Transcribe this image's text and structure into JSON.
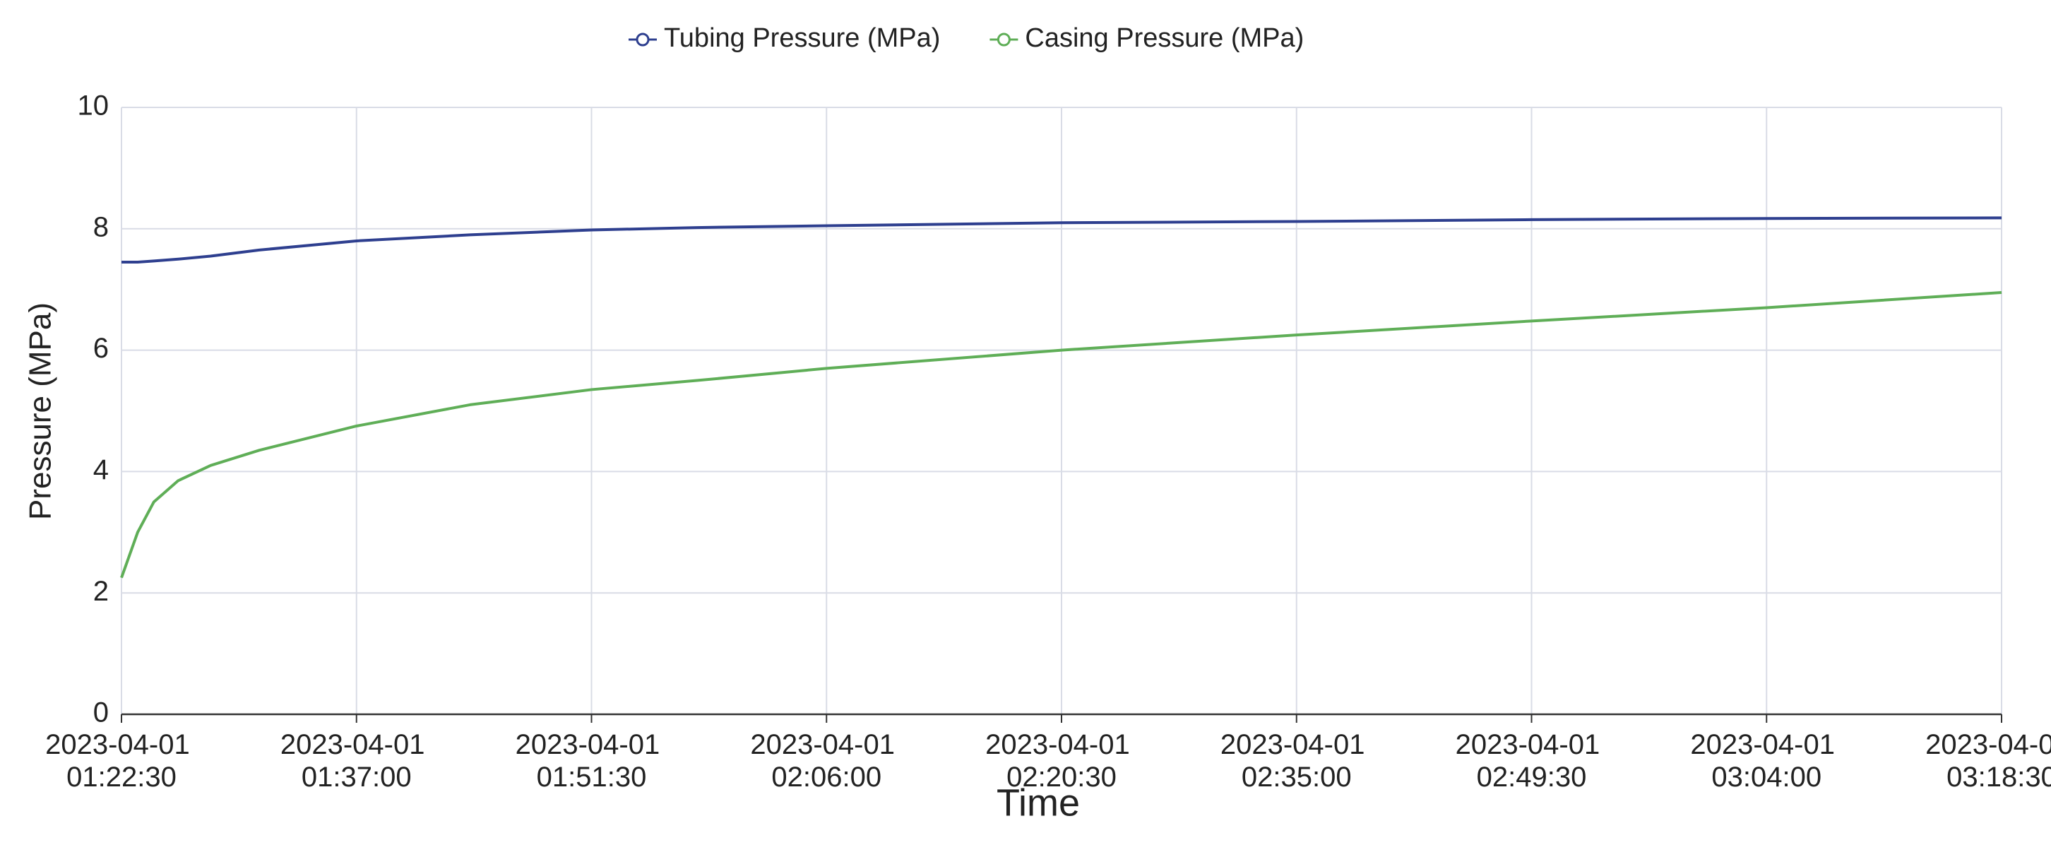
{
  "chart_data": {
    "type": "line",
    "x_label": "Time",
    "y_label": "Pressure (MPa)",
    "x": [
      "2023-04-01 01:22:30",
      "2023-04-01 01:23:30",
      "2023-04-01 01:24:30",
      "2023-04-01 01:26:00",
      "2023-04-01 01:28:00",
      "2023-04-01 01:31:00",
      "2023-04-01 01:37:00",
      "2023-04-01 01:44:00",
      "2023-04-01 01:51:30",
      "2023-04-01 01:58:00",
      "2023-04-01 02:06:00",
      "2023-04-01 02:20:30",
      "2023-04-01 02:35:00",
      "2023-04-01 02:49:30",
      "2023-04-01 03:04:00",
      "2023-04-01 03:18:30"
    ],
    "series": [
      {
        "name": "Tubing Pressure (MPa)",
        "color": "#2e3f8f",
        "values": [
          7.45,
          7.45,
          7.47,
          7.5,
          7.55,
          7.65,
          7.8,
          7.9,
          7.98,
          8.02,
          8.05,
          8.1,
          8.12,
          8.15,
          8.17,
          8.18
        ]
      },
      {
        "name": "Casing Pressure (MPa)",
        "color": "#5fae57",
        "values": [
          2.25,
          3.0,
          3.5,
          3.85,
          4.1,
          4.35,
          4.75,
          5.1,
          5.35,
          5.5,
          5.7,
          6.0,
          6.25,
          6.48,
          6.7,
          6.95
        ]
      }
    ],
    "xlim": [
      "2023-04-01 01:22:30",
      "2023-04-01 03:18:30"
    ],
    "xticks": [
      "2023-04-01 01:22:30",
      "2023-04-01 01:37:00",
      "2023-04-01 01:51:30",
      "2023-04-01 02:06:00",
      "2023-04-01 02:20:30",
      "2023-04-01 02:35:00",
      "2023-04-01 02:49:30",
      "2023-04-01 03:04:00",
      "2023-04-01 03:18:30"
    ],
    "ylim": [
      0,
      10
    ],
    "yticks": [
      0,
      2,
      4,
      6,
      8,
      10
    ],
    "grid": true,
    "legend": "top"
  }
}
